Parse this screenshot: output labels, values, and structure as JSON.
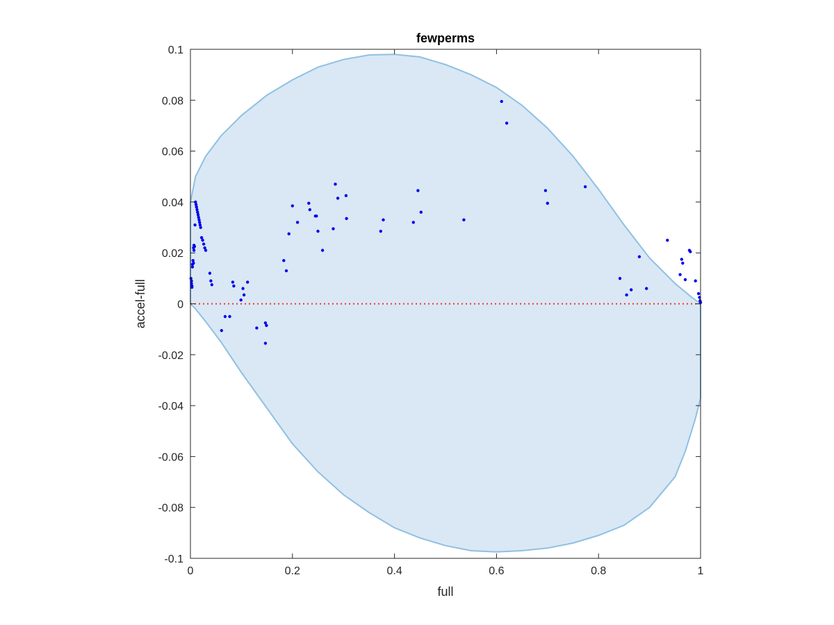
{
  "chart_data": {
    "type": "scatter",
    "title": "fewperms",
    "xlabel": "full",
    "ylabel": "accel-full",
    "xlim": [
      0,
      1
    ],
    "ylim": [
      -0.1,
      0.1
    ],
    "xticks": [
      "0",
      "0.2",
      "0.4",
      "0.6",
      "0.8",
      "1"
    ],
    "yticks": [
      "-0.1",
      "-0.08",
      "-0.06",
      "-0.04",
      "-0.02",
      "0",
      "0.02",
      "0.04",
      "0.06",
      "0.08",
      "0.1"
    ],
    "grid": false,
    "colors": {
      "points": "#0000ee",
      "region_fill": "#d9e8f4",
      "region_edge": "#8fc0e2",
      "reference_line": "#ff2a2a"
    },
    "reference_line_y": 0,
    "region_boundary": {
      "upper": [
        [
          0,
          0.04
        ],
        [
          0.01,
          0.05
        ],
        [
          0.03,
          0.058
        ],
        [
          0.06,
          0.066
        ],
        [
          0.1,
          0.074
        ],
        [
          0.15,
          0.082
        ],
        [
          0.2,
          0.088
        ],
        [
          0.25,
          0.093
        ],
        [
          0.3,
          0.096
        ],
        [
          0.35,
          0.0978
        ],
        [
          0.4,
          0.098
        ],
        [
          0.45,
          0.097
        ],
        [
          0.5,
          0.094
        ],
        [
          0.55,
          0.09
        ],
        [
          0.6,
          0.085
        ],
        [
          0.65,
          0.078
        ],
        [
          0.7,
          0.069
        ],
        [
          0.75,
          0.058
        ],
        [
          0.8,
          0.045
        ],
        [
          0.85,
          0.031
        ],
        [
          0.9,
          0.018
        ],
        [
          0.95,
          0.008
        ],
        [
          0.98,
          0.003
        ],
        [
          1,
          0
        ]
      ],
      "lower": [
        [
          1,
          -0.037
        ],
        [
          0.99,
          -0.045
        ],
        [
          0.97,
          -0.058
        ],
        [
          0.95,
          -0.068
        ],
        [
          0.9,
          -0.08
        ],
        [
          0.85,
          -0.087
        ],
        [
          0.8,
          -0.091
        ],
        [
          0.75,
          -0.094
        ],
        [
          0.7,
          -0.096
        ],
        [
          0.65,
          -0.097
        ],
        [
          0.6,
          -0.0975
        ],
        [
          0.55,
          -0.097
        ],
        [
          0.5,
          -0.095
        ],
        [
          0.45,
          -0.092
        ],
        [
          0.4,
          -0.088
        ],
        [
          0.35,
          -0.082
        ],
        [
          0.3,
          -0.075
        ],
        [
          0.25,
          -0.066
        ],
        [
          0.2,
          -0.055
        ],
        [
          0.15,
          -0.041
        ],
        [
          0.1,
          -0.027
        ],
        [
          0.06,
          -0.015
        ],
        [
          0.03,
          -0.007
        ],
        [
          0.01,
          -0.002
        ],
        [
          0,
          0
        ]
      ]
    },
    "points": [
      [
        0.001,
        0.01
      ],
      [
        0.002,
        0.009
      ],
      [
        0.002,
        0.008
      ],
      [
        0.003,
        0.007
      ],
      [
        0.003,
        0.0065
      ],
      [
        0.004,
        0.0155
      ],
      [
        0.004,
        0.0145
      ],
      [
        0.005,
        0.017
      ],
      [
        0.006,
        0.016
      ],
      [
        0.006,
        0.022
      ],
      [
        0.007,
        0.021
      ],
      [
        0.007,
        0.023
      ],
      [
        0.008,
        0.0225
      ],
      [
        0.009,
        0.031
      ],
      [
        0.01,
        0.04
      ],
      [
        0.011,
        0.039
      ],
      [
        0.012,
        0.038
      ],
      [
        0.013,
        0.037
      ],
      [
        0.014,
        0.036
      ],
      [
        0.015,
        0.035
      ],
      [
        0.016,
        0.034
      ],
      [
        0.017,
        0.033
      ],
      [
        0.018,
        0.032
      ],
      [
        0.019,
        0.031
      ],
      [
        0.02,
        0.03
      ],
      [
        0.022,
        0.026
      ],
      [
        0.024,
        0.025
      ],
      [
        0.026,
        0.0235
      ],
      [
        0.028,
        0.022
      ],
      [
        0.03,
        0.021
      ],
      [
        0.038,
        0.012
      ],
      [
        0.04,
        0.009
      ],
      [
        0.042,
        0.0075
      ],
      [
        0.061,
        -0.0105
      ],
      [
        0.068,
        -0.005
      ],
      [
        0.077,
        -0.005
      ],
      [
        0.083,
        0.0085
      ],
      [
        0.085,
        0.007
      ],
      [
        0.099,
        0.0015
      ],
      [
        0.103,
        0.006
      ],
      [
        0.105,
        0.0035
      ],
      [
        0.112,
        0.0085
      ],
      [
        0.13,
        -0.0095
      ],
      [
        0.147,
        -0.0075
      ],
      [
        0.149,
        -0.0085
      ],
      [
        0.147,
        -0.0155
      ],
      [
        0.183,
        0.017
      ],
      [
        0.188,
        0.013
      ],
      [
        0.193,
        0.0275
      ],
      [
        0.2,
        0.0385
      ],
      [
        0.21,
        0.032
      ],
      [
        0.232,
        0.0395
      ],
      [
        0.234,
        0.037
      ],
      [
        0.245,
        0.0345
      ],
      [
        0.247,
        0.0345
      ],
      [
        0.25,
        0.0285
      ],
      [
        0.259,
        0.021
      ],
      [
        0.28,
        0.0295
      ],
      [
        0.284,
        0.047
      ],
      [
        0.289,
        0.0415
      ],
      [
        0.305,
        0.0425
      ],
      [
        0.306,
        0.0335
      ],
      [
        0.373,
        0.0285
      ],
      [
        0.378,
        0.033
      ],
      [
        0.437,
        0.032
      ],
      [
        0.446,
        0.0445
      ],
      [
        0.452,
        0.036
      ],
      [
        0.536,
        0.033
      ],
      [
        0.61,
        0.0795
      ],
      [
        0.62,
        0.071
      ],
      [
        0.696,
        0.0445
      ],
      [
        0.7,
        0.0395
      ],
      [
        0.774,
        0.046
      ],
      [
        0.842,
        0.01
      ],
      [
        0.855,
        0.0035
      ],
      [
        0.864,
        0.0055
      ],
      [
        0.88,
        0.0185
      ],
      [
        0.894,
        0.006
      ],
      [
        0.935,
        0.025
      ],
      [
        0.96,
        0.0115
      ],
      [
        0.963,
        0.0175
      ],
      [
        0.965,
        0.016
      ],
      [
        0.97,
        0.0095
      ],
      [
        0.978,
        0.021
      ],
      [
        0.98,
        0.0205
      ],
      [
        0.99,
        0.009
      ],
      [
        0.996,
        0.004
      ],
      [
        0.998,
        0.0025
      ],
      [
        0.999,
        0.0012
      ],
      [
        1.0,
        0.0005
      ]
    ]
  }
}
